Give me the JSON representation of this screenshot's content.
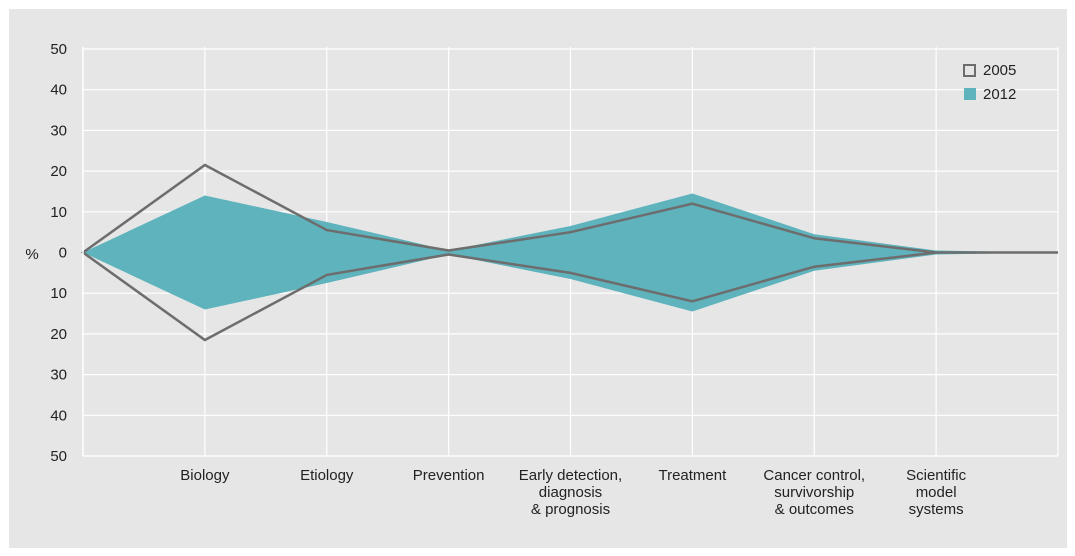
{
  "chart_data": {
    "type": "area",
    "title": "",
    "xlabel": "",
    "ylabel": "%",
    "ylim": [
      -50,
      50
    ],
    "y_tick_values": [
      50,
      40,
      30,
      20,
      10,
      0,
      -10,
      -20,
      -30,
      -40,
      -50
    ],
    "y_tick_labels": [
      "50",
      "40",
      "30",
      "20",
      "10",
      "0",
      "10",
      "20",
      "30",
      "40",
      "50"
    ],
    "categories": [
      {
        "label_lines": [
          "Biology"
        ]
      },
      {
        "label_lines": [
          "Etiology"
        ]
      },
      {
        "label_lines": [
          "Prevention"
        ]
      },
      {
        "label_lines": [
          "Early detection,",
          "diagnosis",
          "& prognosis"
        ]
      },
      {
        "label_lines": [
          "Treatment"
        ]
      },
      {
        "label_lines": [
          "Cancer control,",
          "survivorship",
          "& outcomes"
        ]
      },
      {
        "label_lines": [
          "Scientific",
          "model",
          "systems"
        ]
      }
    ],
    "series": [
      {
        "name": "2005",
        "values": [
          21.5,
          5.5,
          0.5,
          5.0,
          12.0,
          3.5,
          0
        ],
        "style": "outline"
      },
      {
        "name": "2012",
        "values": [
          14.0,
          7.5,
          0.5,
          6.5,
          14.5,
          4.5,
          0.5
        ],
        "style": "filled"
      }
    ],
    "grid": true,
    "legend_position": "top-right",
    "colors": {
      "background": "#e6e6e6",
      "gridline": "#ffffff",
      "axis": "#ffffff",
      "series_2005": "#6d6d6d",
      "series_2012": "#5eb3bd",
      "text": "#222222"
    }
  }
}
